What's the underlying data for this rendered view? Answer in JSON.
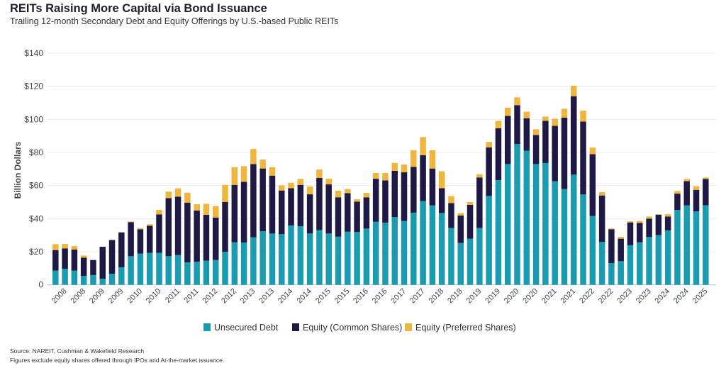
{
  "title": "REITs Raising More Capital via Bond Issuance",
  "subtitle": "Trailing 12-month Secondary Debt and Equity Offerings by U.S.-based Public REITs",
  "source": "Source: NAREIT, Cushman & Wakefield Research",
  "footnote": "Figures exclude equity shares offered through IPOs and At-the-market issuance.",
  "chart_data": {
    "type": "bar",
    "stacked": true,
    "title": "REITs Raising More Capital via Bond Issuance",
    "ylabel": "Billion Dollars",
    "xlabel": "",
    "ylim": [
      0,
      140
    ],
    "yticks": [
      "0",
      "$20",
      "$40",
      "$60",
      "$80",
      "$100",
      "$120",
      "$140"
    ],
    "ytick_values": [
      0,
      20,
      40,
      60,
      80,
      100,
      120,
      140
    ],
    "grid": true,
    "legend": "bottom",
    "categories": [
      "",
      "2008",
      "",
      "2008",
      "",
      "2009",
      "",
      "2009",
      "",
      "2010",
      "",
      "2010",
      "",
      "2011",
      "",
      "2011",
      "",
      "2012",
      "",
      "2012",
      "",
      "2013",
      "",
      "2013",
      "",
      "2014",
      "",
      "2014",
      "",
      "2015",
      "",
      "2015",
      "",
      "2016",
      "",
      "2016",
      "",
      "2017",
      "",
      "2017",
      "",
      "2018",
      "",
      "2018",
      "",
      "2019",
      "",
      "2019",
      "",
      "2020",
      "",
      "2020",
      "",
      "2021",
      "",
      "2021",
      "",
      "2022",
      "",
      "2022",
      "",
      "2023",
      "",
      "2023",
      "",
      "2024",
      "",
      "2024",
      "",
      "2025"
    ],
    "series": [
      {
        "name": "Unsecured Debt",
        "color": "#1a9cb0",
        "values": [
          8.6,
          9.7,
          8.6,
          5.4,
          5.9,
          3.7,
          6.7,
          10.6,
          17.3,
          18.9,
          19.3,
          19.3,
          17.3,
          18.0,
          13.6,
          13.9,
          14.6,
          15.0,
          20.0,
          25.7,
          25.6,
          28.7,
          32.4,
          31.0,
          30.6,
          35.9,
          35.4,
          31.0,
          33.1,
          31.0,
          29.1,
          32.1,
          31.9,
          34.0,
          38.1,
          37.6,
          41.0,
          38.6,
          43.6,
          50.6,
          48.0,
          43.4,
          34.4,
          25.3,
          27.9,
          34.4,
          53.7,
          63.3,
          73.0,
          85.1,
          81.1,
          73.0,
          73.6,
          62.6,
          57.9,
          66.6,
          54.6,
          41.6,
          26.0,
          13.1,
          14.3,
          23.9,
          25.7,
          28.9,
          30.1,
          32.9,
          45.3,
          48.0,
          44.4,
          48.1
        ]
      },
      {
        "name": "Equity (Common Shares)",
        "color": "#1f1a45",
        "values": [
          12.4,
          12.3,
          12.7,
          11.0,
          9.1,
          19.3,
          20.4,
          21.1,
          20.6,
          14.7,
          16.4,
          23.3,
          35.1,
          35.3,
          36.1,
          31.0,
          27.7,
          25.7,
          30.1,
          34.7,
          36.7,
          44.3,
          37.9,
          35.0,
          26.4,
          22.5,
          25.0,
          23.7,
          31.5,
          29.7,
          23.8,
          23.3,
          18.4,
          18.9,
          26.0,
          25.5,
          27.9,
          29.4,
          27.7,
          27.7,
          22.3,
          15.0,
          15.0,
          16.6,
          20.4,
          30.5,
          29.4,
          31.3,
          29.1,
          23.5,
          19.6,
          17.6,
          25.5,
          33.5,
          43.1,
          47.4,
          44.1,
          37.4,
          28.0,
          20.5,
          13.6,
          13.8,
          11.7,
          11.1,
          12.2,
          8.4,
          9.8,
          14.7,
          13.0,
          15.9
        ]
      },
      {
        "name": "Equity (Preferred Shares)",
        "color": "#f0b53d",
        "values": [
          3.6,
          2.7,
          2.1,
          1.3,
          0,
          0,
          0,
          0,
          0.4,
          0.7,
          0.9,
          2.7,
          3.9,
          5.0,
          6.0,
          3.8,
          6.7,
          6.9,
          10.3,
          10.7,
          9.4,
          9.1,
          5.4,
          5.1,
          3.1,
          3.3,
          3.6,
          4.7,
          5.1,
          3.4,
          4.0,
          2.5,
          1.4,
          2.7,
          3.5,
          4.5,
          4.8,
          4.7,
          10.0,
          11.0,
          11.0,
          10.2,
          4.2,
          1.5,
          1.7,
          2.0,
          3.3,
          4.5,
          5.0,
          4.7,
          3.9,
          3.4,
          2.6,
          4.3,
          5.4,
          6.3,
          6.6,
          4.0,
          2.0,
          0.5,
          1.1,
          0.7,
          1.2,
          1.3,
          0.4,
          1.4,
          1.6,
          1.3,
          2.2,
          0.9
        ]
      }
    ]
  }
}
